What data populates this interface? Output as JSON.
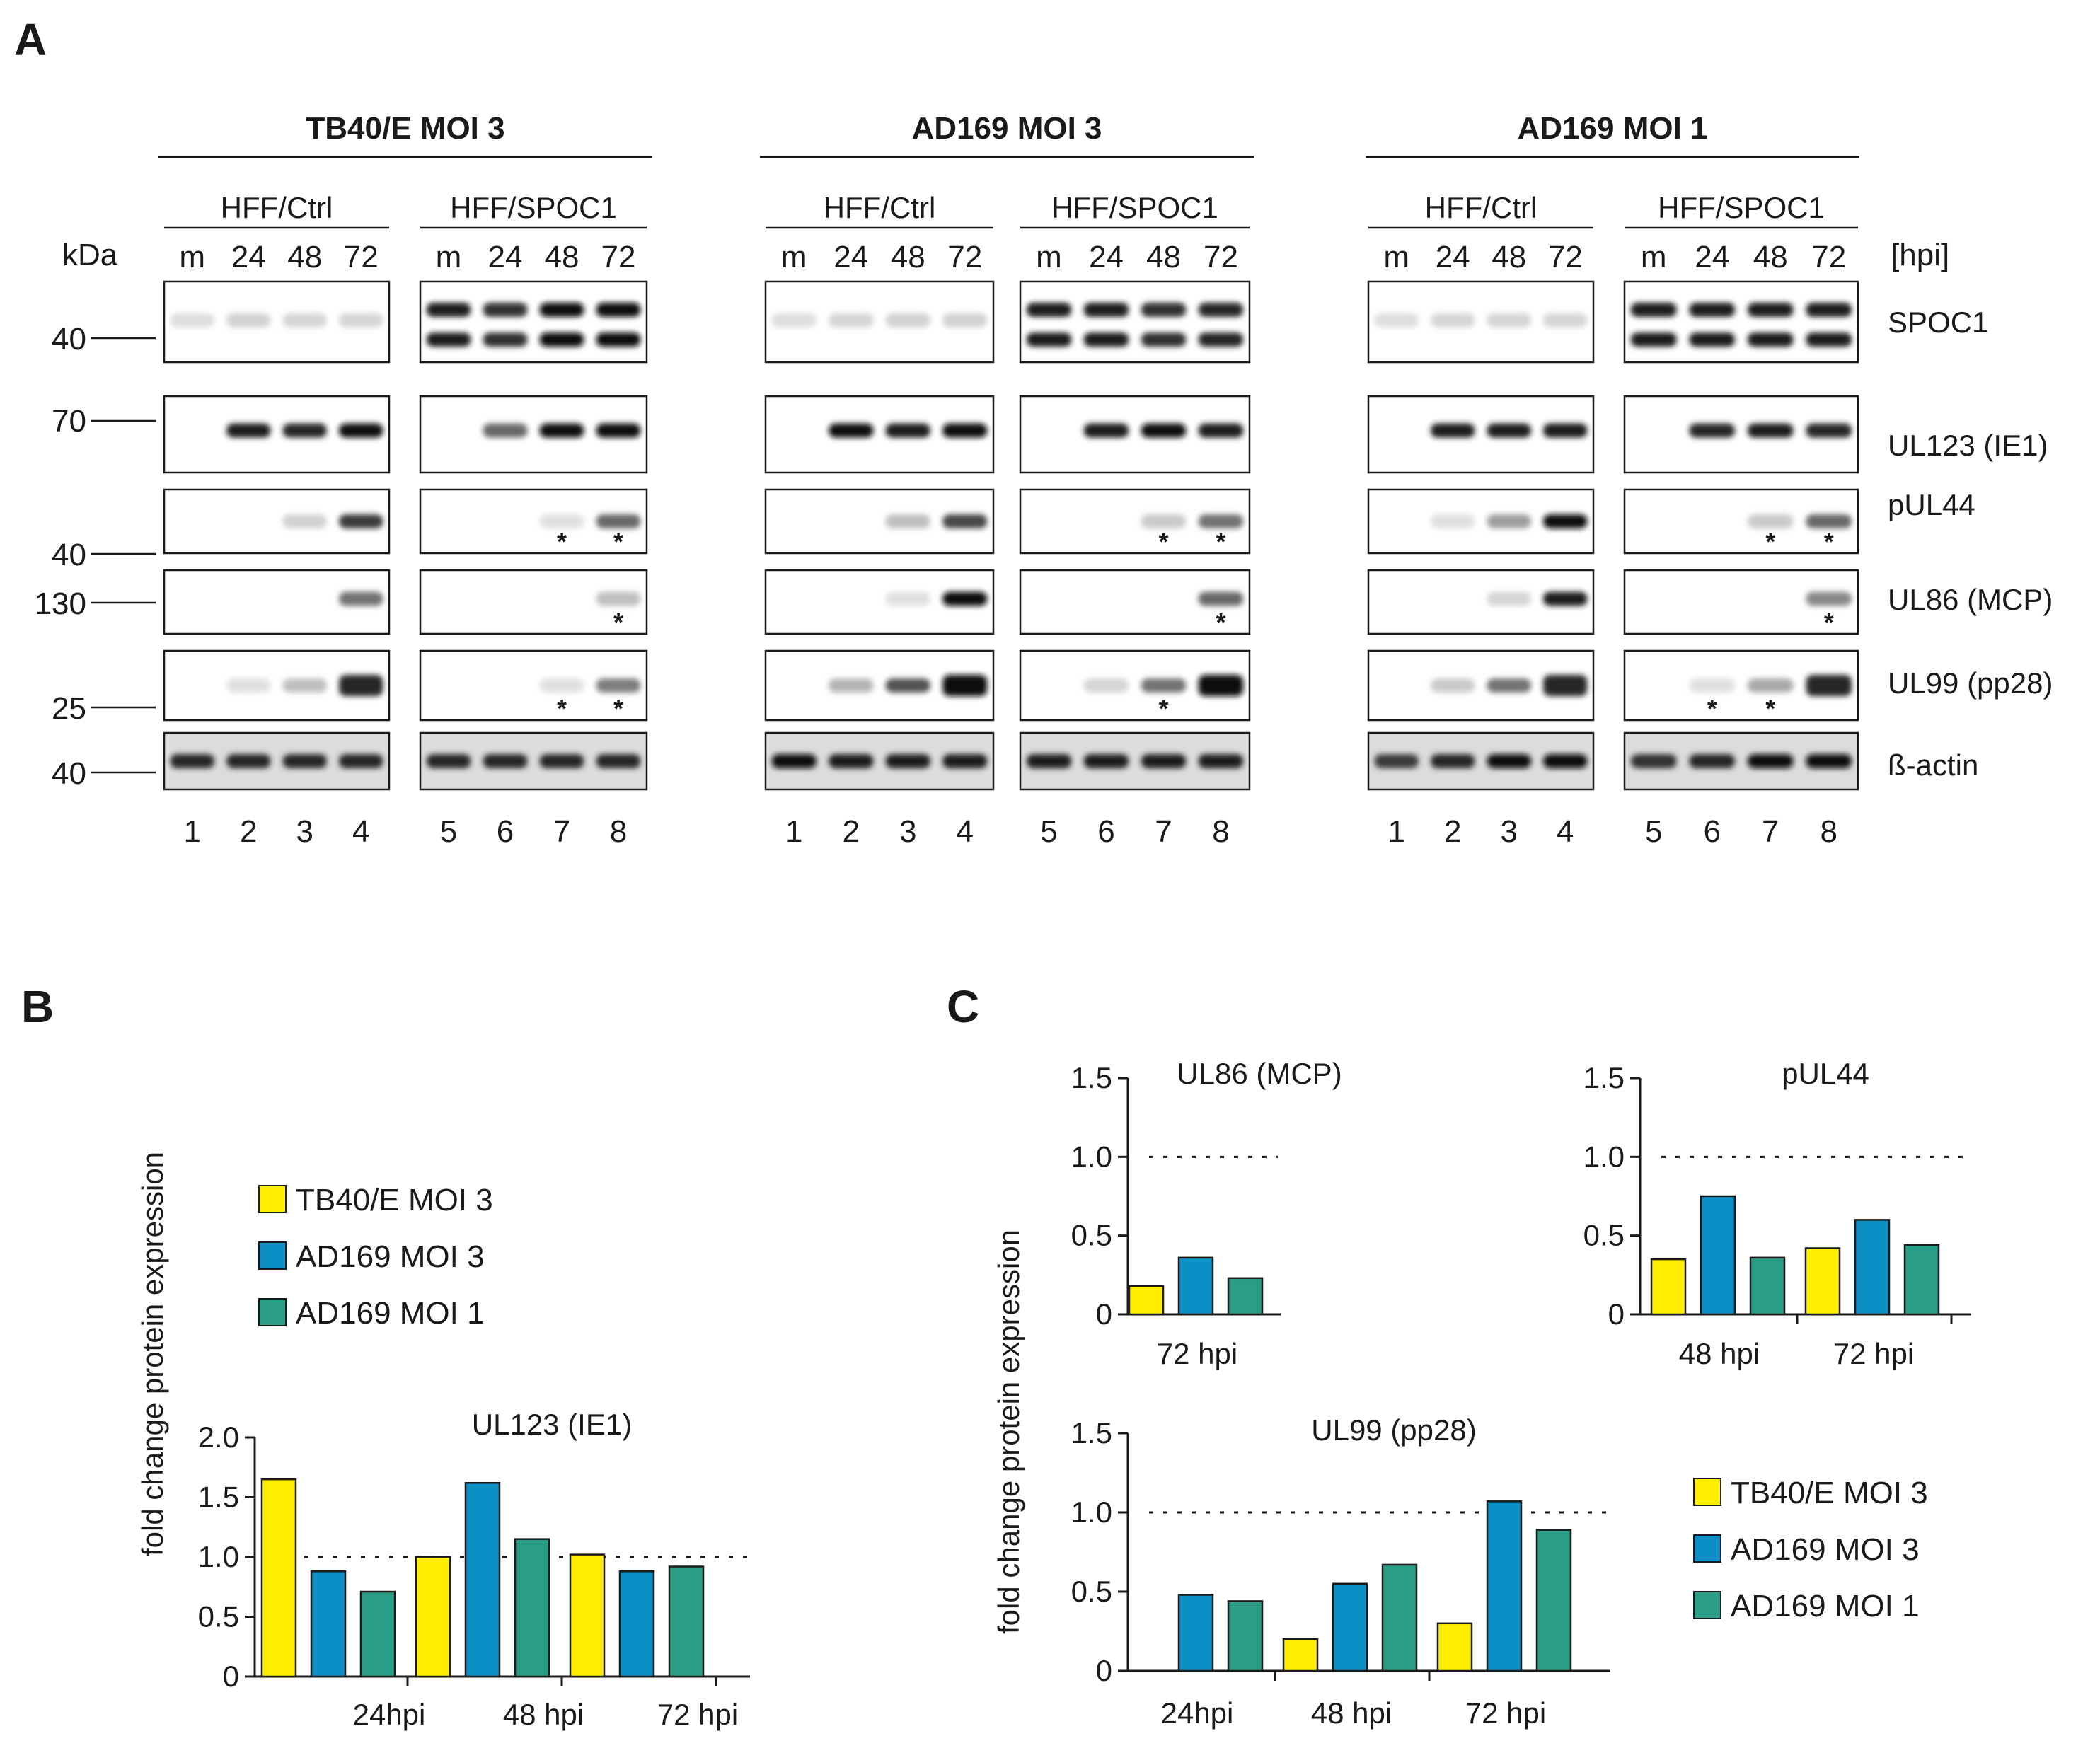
{
  "panels": {
    "a": "A",
    "b": "B",
    "c": "C"
  },
  "blot": {
    "conditions": [
      "TB40/E MOI 3",
      "AD169 MOI 3",
      "AD169 MOI 1"
    ],
    "cell_lines": [
      "HFF/Ctrl",
      "HFF/SPOC1"
    ],
    "lane_headers": [
      "m",
      "24",
      "48",
      "72"
    ],
    "kda_label": "kDa",
    "hpi_label": "[hpi]",
    "mw_markers": [
      "40",
      "70",
      "40",
      "130",
      "25",
      "40"
    ],
    "proteins": [
      "SPOC1",
      "UL123 (IE1)",
      "pUL44",
      "UL86 (MCP)",
      "UL99 (pp28)",
      "ß-actin"
    ],
    "lane_numbers": [
      "1",
      "2",
      "3",
      "4",
      "5",
      "6",
      "7",
      "8"
    ],
    "asterisk": "*"
  },
  "colors": {
    "tb40e": "#ffee00",
    "ad169_moi3": "#0b8fc4",
    "ad169_moi1": "#2a9d86"
  },
  "legend": {
    "items": [
      "TB40/E MOI 3",
      "AD169  MOI 3",
      "AD169  MOI 1"
    ]
  },
  "chart_data": [
    {
      "type": "bar",
      "title": "UL123 (IE1)",
      "ylabel": "fold change protein expression",
      "ylim": [
        0,
        2.0
      ],
      "yticks": [
        "0",
        "0.5",
        "1.0",
        "1.5",
        "2.0"
      ],
      "reference_line": 1.0,
      "categories": [
        "24hpi",
        "48 hpi",
        "72 hpi"
      ],
      "series": [
        {
          "name": "TB40/E MOI 3",
          "values": [
            1.65,
            1.0,
            1.02
          ]
        },
        {
          "name": "AD169  MOI 3",
          "values": [
            0.88,
            1.62,
            0.88
          ]
        },
        {
          "name": "AD169  MOI 1",
          "values": [
            0.71,
            1.15,
            0.92
          ]
        }
      ]
    },
    {
      "type": "bar",
      "title": "UL86 (MCP)",
      "ylim": [
        0,
        1.5
      ],
      "yticks": [
        "0",
        "0.5",
        "1.0",
        "1.5"
      ],
      "reference_line": 1.0,
      "categories": [
        "72 hpi"
      ],
      "series": [
        {
          "name": "TB40/E MOI 3",
          "values": [
            0.18
          ]
        },
        {
          "name": "AD169  MOI 3",
          "values": [
            0.36
          ]
        },
        {
          "name": "AD169  MOI 1",
          "values": [
            0.23
          ]
        }
      ]
    },
    {
      "type": "bar",
      "title": "pUL44",
      "ylim": [
        0,
        1.5
      ],
      "yticks": [
        "0",
        "0.5",
        "1.0",
        "1.5"
      ],
      "reference_line": 1.0,
      "categories": [
        "48 hpi",
        "72 hpi"
      ],
      "series": [
        {
          "name": "TB40/E MOI 3",
          "values": [
            0.35,
            0.42
          ]
        },
        {
          "name": "AD169  MOI 3",
          "values": [
            0.75,
            0.6
          ]
        },
        {
          "name": "AD169  MOI 1",
          "values": [
            0.36,
            0.44
          ]
        }
      ]
    },
    {
      "type": "bar",
      "title": "UL99 (pp28)",
      "ylabel": "fold change protein expression",
      "ylim": [
        0,
        1.5
      ],
      "yticks": [
        "0",
        "0.5",
        "1.0",
        "1.5"
      ],
      "reference_line": 1.0,
      "categories": [
        "24hpi",
        "48 hpi",
        "72 hpi"
      ],
      "series": [
        {
          "name": "TB40/E MOI 3",
          "values": [
            0,
            0.2,
            0.3
          ]
        },
        {
          "name": "AD169  MOI 3",
          "values": [
            0.48,
            0.55,
            1.07
          ]
        },
        {
          "name": "AD169  MOI 1",
          "values": [
            0.44,
            0.67,
            0.89
          ]
        }
      ]
    }
  ]
}
